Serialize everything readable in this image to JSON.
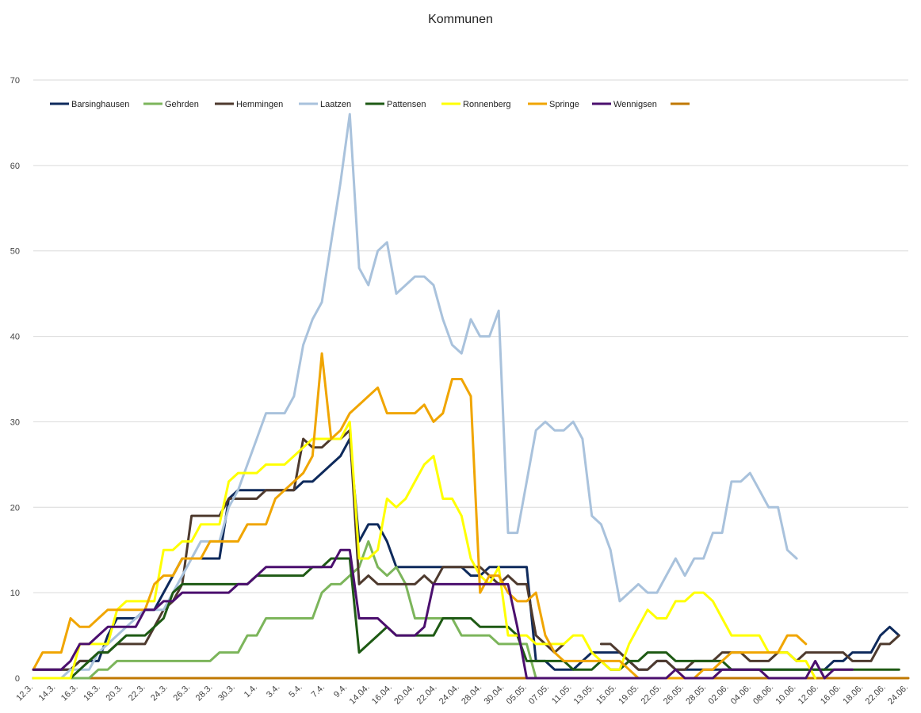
{
  "chart_data": {
    "type": "line",
    "title": "Kommunen",
    "xlabel": "",
    "ylabel": "",
    "ylim": [
      0,
      70
    ],
    "yticks": [
      0,
      10,
      20,
      30,
      40,
      50,
      60,
      70
    ],
    "grid": true,
    "legend_position": "top",
    "x_labels": [
      "12.3.",
      "14.3.",
      "16.3.",
      "18.3.",
      "20.3.",
      "22.3.",
      "24.3.",
      "26.3.",
      "28.3.",
      "30.3.",
      "1.4.",
      "3.4.",
      "5.4.",
      "7.4.",
      "9.4.",
      "14.04.",
      "16.04.",
      "20.04.",
      "22.04.",
      "24.04.",
      "28.04.",
      "30.04.",
      "05.05.",
      "07.05.",
      "11.05.",
      "13.05.",
      "15.05.",
      "19.05.",
      "22.05.",
      "26.05.",
      "28.05.",
      "02.06.",
      "04.06.",
      "08.06.",
      "10.06.",
      "12.06.",
      "16.06.",
      "18.06.",
      "22.06.",
      "24.06."
    ],
    "series": [
      {
        "name": "Barsinghausen",
        "color": "#0e2a5c",
        "values": [
          1,
          1,
          1,
          1,
          1,
          2,
          2,
          2,
          5,
          7,
          7,
          7,
          8,
          8,
          10,
          12,
          14,
          14,
          14,
          14,
          14,
          21,
          22,
          22,
          22,
          22,
          22,
          22,
          22,
          23,
          23,
          24,
          25,
          26,
          28,
          16,
          18,
          18,
          16,
          13,
          13,
          13,
          13,
          13,
          13,
          13,
          13,
          12,
          12,
          13,
          13,
          13,
          13,
          13,
          2,
          2,
          1,
          1,
          1,
          2,
          3,
          3,
          3,
          3,
          2,
          1,
          1,
          2,
          2,
          1,
          1,
          1,
          1,
          1,
          1,
          1,
          1,
          1,
          1,
          1,
          1,
          1,
          1,
          1,
          1,
          1,
          2,
          2,
          3,
          3,
          3,
          5,
          6,
          5
        ]
      },
      {
        "name": "Gehrden",
        "color": "#7cb55b",
        "values": [
          0,
          0,
          0,
          0,
          0,
          0,
          0,
          1,
          1,
          2,
          2,
          2,
          2,
          2,
          2,
          2,
          2,
          2,
          2,
          2,
          3,
          3,
          3,
          5,
          5,
          7,
          7,
          7,
          7,
          7,
          7,
          10,
          11,
          11,
          12,
          13,
          16,
          13,
          12,
          13,
          11,
          7,
          7,
          7,
          7,
          7,
          5,
          5,
          5,
          5,
          4,
          4,
          4,
          4,
          0,
          null,
          null,
          null,
          null,
          null,
          null,
          null,
          null,
          null,
          null,
          null,
          null,
          null,
          null,
          null,
          null,
          null,
          null,
          null,
          null,
          null,
          null,
          null,
          null,
          null,
          null,
          null,
          null,
          null,
          null,
          null,
          null,
          null,
          null,
          null,
          null,
          null,
          null,
          null
        ]
      },
      {
        "name": "Hemmingen",
        "color": "#4e3a2e",
        "values": [
          1,
          1,
          1,
          1,
          1,
          2,
          2,
          3,
          3,
          4,
          4,
          4,
          4,
          6,
          8,
          9,
          11,
          19,
          19,
          19,
          19,
          21,
          21,
          21,
          21,
          22,
          22,
          22,
          22,
          28,
          27,
          27,
          28,
          28,
          29,
          11,
          12,
          11,
          11,
          11,
          11,
          11,
          12,
          11,
          13,
          13,
          13,
          13,
          13,
          12,
          11,
          12,
          11,
          11,
          5,
          4,
          3,
          4,
          null,
          null,
          null,
          4,
          4,
          3,
          2,
          1,
          1,
          2,
          2,
          1,
          1,
          2,
          2,
          2,
          3,
          3,
          3,
          2,
          2,
          2,
          3,
          3,
          2,
          3,
          3,
          3,
          3,
          3,
          2,
          2,
          2,
          4,
          4,
          5
        ]
      },
      {
        "name": "Laatzen",
        "color": "#a9c2dc",
        "values": [
          0,
          0,
          0,
          0,
          1,
          1,
          1,
          3,
          4,
          5,
          6,
          7,
          8,
          8,
          8,
          10,
          12,
          14,
          16,
          16,
          16,
          20,
          22,
          25,
          28,
          31,
          31,
          31,
          33,
          39,
          42,
          44,
          51,
          58,
          66,
          48,
          46,
          50,
          51,
          45,
          46,
          47,
          47,
          46,
          42,
          39,
          38,
          42,
          40,
          40,
          43,
          17,
          17,
          23,
          29,
          30,
          29,
          29,
          30,
          28,
          19,
          18,
          15,
          9,
          10,
          11,
          10,
          10,
          12,
          14,
          12,
          14,
          14,
          17,
          17,
          23,
          23,
          24,
          22,
          20,
          20,
          15,
          14
        ]
      },
      {
        "name": "Pattensen",
        "color": "#1e5a14",
        "values": [
          0,
          0,
          0,
          0,
          0,
          1,
          2,
          3,
          3,
          4,
          5,
          5,
          5,
          6,
          7,
          10,
          11,
          11,
          11,
          11,
          11,
          11,
          11,
          11,
          12,
          12,
          12,
          12,
          12,
          12,
          13,
          13,
          14,
          14,
          14,
          3,
          4,
          5,
          6,
          5,
          5,
          5,
          5,
          5,
          7,
          7,
          7,
          7,
          6,
          6,
          6,
          6,
          5,
          2,
          2,
          2,
          2,
          2,
          1,
          1,
          1,
          2,
          1,
          1,
          2,
          2,
          3,
          3,
          3,
          2,
          2,
          2,
          2,
          2,
          2,
          1,
          1,
          1,
          1,
          1,
          1,
          1,
          1,
          1,
          1,
          1,
          1,
          1,
          1,
          1,
          1,
          1,
          1,
          1
        ]
      },
      {
        "name": "Ronnenberg",
        "color": "#ffff00",
        "values": [
          0,
          0,
          0,
          0,
          0,
          4,
          4,
          4,
          4,
          8,
          9,
          9,
          9,
          9,
          15,
          15,
          16,
          16,
          18,
          18,
          18,
          23,
          24,
          24,
          24,
          25,
          25,
          25,
          26,
          27,
          28,
          28,
          28,
          28,
          30,
          14,
          14,
          15,
          21,
          20,
          21,
          23,
          25,
          26,
          21,
          21,
          19,
          14,
          12,
          11,
          13,
          5,
          5,
          5,
          4,
          4,
          4,
          4,
          5,
          5,
          3,
          2,
          1,
          1,
          4,
          6,
          8,
          7,
          7,
          9,
          9,
          10,
          10,
          9,
          7,
          5,
          5,
          5,
          5,
          3,
          3,
          3,
          2,
          2,
          0
        ]
      },
      {
        "name": "Springe",
        "color": "#f0a500",
        "values": [
          1,
          3,
          3,
          3,
          7,
          6,
          6,
          7,
          8,
          8,
          8,
          8,
          8,
          11,
          12,
          12,
          14,
          14,
          14,
          16,
          16,
          16,
          16,
          18,
          18,
          18,
          21,
          22,
          23,
          24,
          26,
          38,
          28,
          29,
          31,
          32,
          33,
          34,
          31,
          31,
          31,
          31,
          32,
          30,
          31,
          35,
          35,
          33,
          10,
          12,
          12,
          10,
          9,
          9,
          10,
          5,
          3,
          2,
          2,
          2,
          2,
          2,
          2,
          2,
          1,
          0,
          0,
          0,
          0,
          0,
          0,
          0,
          1,
          1,
          2,
          3,
          3,
          3,
          3,
          3,
          3,
          5,
          5,
          4
        ]
      },
      {
        "name": "Wennigsen",
        "color": "#4b0f6e",
        "values": [
          1,
          1,
          1,
          1,
          2,
          4,
          4,
          5,
          6,
          6,
          6,
          6,
          8,
          8,
          9,
          9,
          10,
          10,
          10,
          10,
          10,
          10,
          11,
          11,
          12,
          13,
          13,
          13,
          13,
          13,
          13,
          13,
          13,
          15,
          15,
          7,
          7,
          7,
          6,
          5,
          5,
          5,
          6,
          11,
          11,
          11,
          11,
          11,
          11,
          11,
          11,
          11,
          6,
          0,
          0,
          0,
          0,
          0,
          0,
          0,
          0,
          0,
          0,
          0,
          0,
          0,
          0,
          0,
          0,
          1,
          0,
          0,
          0,
          0,
          1,
          1,
          1,
          1,
          1,
          0,
          0,
          0,
          0,
          0,
          2,
          0,
          1,
          1,
          1
        ]
      },
      {
        "name": "",
        "color": "#c07800",
        "values": [
          0,
          0,
          0,
          0,
          0,
          0,
          0,
          0,
          0,
          0,
          0,
          0,
          0,
          0,
          0,
          0,
          0,
          0,
          0,
          0,
          0,
          0,
          0,
          0,
          0,
          0,
          0,
          0,
          0,
          0,
          0,
          0,
          0,
          0,
          0,
          0,
          0,
          0,
          0,
          0,
          0,
          0,
          0,
          0,
          0,
          0,
          0,
          0,
          0,
          0,
          0,
          0,
          0,
          0,
          0,
          0,
          0,
          0,
          0,
          0,
          0,
          0,
          0,
          0,
          0,
          0,
          0,
          0,
          0,
          0,
          0,
          0,
          0,
          0,
          0,
          0,
          0,
          0,
          0,
          0,
          0,
          0,
          0,
          0,
          0,
          0,
          0,
          0,
          0,
          0,
          0,
          0,
          0,
          0,
          0
        ]
      }
    ]
  }
}
